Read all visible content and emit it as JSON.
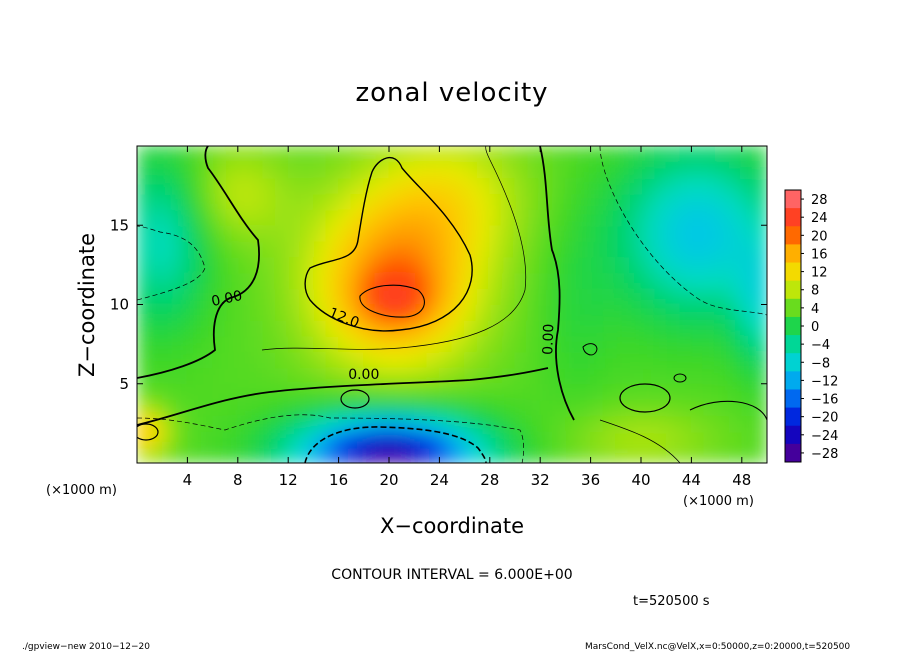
{
  "chart_data": {
    "type": "heatmap",
    "title": "zonal velocity",
    "xlabel": "X−coordinate",
    "ylabel": "Z−coordinate",
    "x_unit_label": "(×1000 m)",
    "x_ticks": [
      "4",
      "8",
      "12",
      "16",
      "20",
      "24",
      "28",
      "32",
      "36",
      "40",
      "44",
      "48"
    ],
    "x_tick_values": [
      4,
      8,
      12,
      16,
      20,
      24,
      28,
      32,
      36,
      40,
      44,
      48
    ],
    "xlim": [
      0,
      50
    ],
    "y_ticks": [
      "5",
      "10",
      "15"
    ],
    "y_tick_values": [
      5,
      10,
      15
    ],
    "ylim": [
      0,
      20
    ],
    "colorbar": {
      "labels": [
        "28",
        "24",
        "20",
        "16",
        "12",
        "8",
        "4",
        "0",
        "−4",
        "−8",
        "−12",
        "−16",
        "−20",
        "−24",
        "−28"
      ],
      "values": [
        28,
        24,
        20,
        16,
        12,
        8,
        4,
        0,
        -4,
        -8,
        -12,
        -16,
        -20,
        -24,
        -28
      ],
      "range": [
        -30,
        30
      ]
    },
    "contour_labels": [
      {
        "text": "0.00",
        "x": 7.2,
        "z": 10.1,
        "rotate": -12
      },
      {
        "text": "12.0",
        "x": 16.3,
        "z": 8.9,
        "rotate": 22
      },
      {
        "text": "0.00",
        "x": 18.0,
        "z": 5.3,
        "rotate": 0
      },
      {
        "text": "0.00",
        "x": 33.0,
        "z": 7.8,
        "rotate": -88
      }
    ],
    "features": [
      {
        "kind": "max",
        "x": 20.5,
        "z": 10.2,
        "value": 20
      },
      {
        "kind": "min",
        "x": 20.0,
        "z": 0.8,
        "value": -24
      },
      {
        "kind": "min",
        "x": 44.5,
        "z": 14.5,
        "value": -12
      },
      {
        "kind": "max",
        "x": 0.8,
        "z": 2.0,
        "value": 14
      }
    ],
    "contour_interval_text": "CONTOUR INTERVAL = 6.000E+00",
    "time_text": "t=520500 s"
  },
  "footer": {
    "left": "./gpview−new  2010−12−20",
    "right": "MarsCond_VelX.nc@VelX,x=0:50000,z=0:20000,t=520500"
  }
}
